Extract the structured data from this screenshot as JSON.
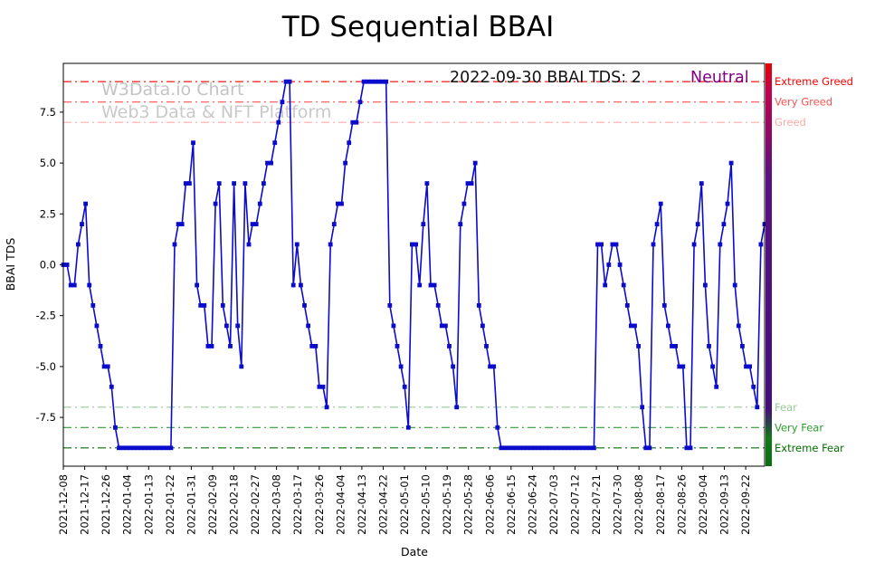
{
  "title": "TD Sequential BBAI",
  "watermark": {
    "line1": "W3Data.io Chart",
    "line2": "Web3 Data & NFT Platform"
  },
  "annotation": {
    "date_text": "2022-09-30 BBAI TDS: 2",
    "sentiment": "Neutral",
    "sentiment_color": "#800080"
  },
  "chart_data": {
    "type": "line",
    "title": "TD Sequential BBAI",
    "xlabel": "Date",
    "ylabel": "BBAI TDS",
    "ylim": [
      -9.9,
      9.9
    ],
    "x_start": "2021-12-08",
    "x_end": "2022-09-30",
    "x_range_days": 296,
    "x_tick_interval_days": 9,
    "grid": false,
    "legend_position": "none",
    "line_color": "#0b0bcc",
    "marker": "square",
    "x_tick_labels": [
      "2021-12-08",
      "2021-12-17",
      "2021-12-26",
      "2022-01-04",
      "2022-01-13",
      "2022-01-22",
      "2022-01-31",
      "2022-02-09",
      "2022-02-18",
      "2022-02-27",
      "2022-03-08",
      "2022-03-17",
      "2022-03-26",
      "2022-04-04",
      "2022-04-13",
      "2022-04-22",
      "2022-05-01",
      "2022-05-10",
      "2022-05-19",
      "2022-05-28",
      "2022-06-06",
      "2022-06-15",
      "2022-06-24",
      "2022-07-03",
      "2022-07-12",
      "2022-07-21",
      "2022-07-30",
      "2022-08-08",
      "2022-08-17",
      "2022-08-26",
      "2022-09-04",
      "2022-09-13",
      "2022-09-22"
    ],
    "y_tick_values": [
      7.5,
      5.0,
      2.5,
      0.0,
      -2.5,
      -5.0,
      -7.5
    ],
    "y_tick_labels": [
      "7.5",
      "5.0",
      "2.5",
      "0.0",
      "-2.5",
      "-5.0",
      "-7.5"
    ],
    "series": [
      {
        "name": "BBAI TDS",
        "values": [
          0,
          0,
          -1,
          -1,
          1,
          2,
          3,
          -1,
          -2,
          -3,
          -4,
          -5,
          -5,
          -6,
          -8,
          -9,
          -9,
          -9,
          -9,
          -9,
          -9,
          -9,
          -9,
          -9,
          -9,
          -9,
          -9,
          -9,
          -9,
          -9,
          1,
          2,
          2,
          4,
          4,
          6,
          -1,
          -2,
          -2,
          -4,
          -4,
          3,
          4,
          -2,
          -3,
          -4,
          4,
          -3,
          -5,
          4,
          1,
          2,
          2,
          3,
          4,
          5,
          5,
          6,
          7,
          8,
          9,
          9,
          -1,
          1,
          -1,
          -2,
          -3,
          -4,
          -4,
          -6,
          -6,
          -7,
          1,
          2,
          3,
          3,
          5,
          6,
          7,
          7,
          8,
          9,
          9,
          9,
          9,
          9,
          9,
          9,
          -2,
          -3,
          -4,
          -5,
          -6,
          -8,
          1,
          1,
          -1,
          2,
          4,
          -1,
          -1,
          -2,
          -3,
          -3,
          -4,
          -5,
          -7,
          2,
          3,
          4,
          4,
          5,
          -2,
          -3,
          -4,
          -5,
          -5,
          -8,
          -9,
          -9,
          -9,
          -9,
          -9,
          -9,
          -9,
          -9,
          -9,
          -9,
          -9,
          -9,
          -9,
          -9,
          -9,
          -9,
          -9,
          -9,
          -9,
          -9,
          -9,
          -9,
          -9,
          -9,
          -9,
          -9,
          1,
          1,
          -1,
          0,
          1,
          1,
          0,
          -1,
          -2,
          -3,
          -3,
          -4,
          -7,
          -9,
          -9,
          1,
          2,
          3,
          -2,
          -3,
          -4,
          -4,
          -5,
          -5,
          -9,
          -9,
          1,
          2,
          4,
          -1,
          -4,
          -5,
          -6,
          1,
          2,
          3,
          5,
          -1,
          -3,
          -4,
          -5,
          -5,
          -6,
          -7,
          1,
          2
        ]
      }
    ],
    "thresholds": [
      {
        "label": "Extreme Greed",
        "y": 9,
        "color": "#ff0000"
      },
      {
        "label": "Very Greed",
        "y": 8,
        "color": "#ff5252"
      },
      {
        "label": "Greed",
        "y": 7,
        "color": "#ffaaaa"
      },
      {
        "label": "Fear",
        "y": -7,
        "color": "#94ce94"
      },
      {
        "label": "Very Fear",
        "y": -8,
        "color": "#2e9e2e"
      },
      {
        "label": "Extreme Fear",
        "y": -9,
        "color": "#007000"
      }
    ],
    "colorbar": [
      {
        "offset": 0,
        "color": "#e60000"
      },
      {
        "offset": 7,
        "color": "#c2004e"
      },
      {
        "offset": 28,
        "color": "#5a1080"
      },
      {
        "offset": 86,
        "color": "#430f7a"
      },
      {
        "offset": 93,
        "color": "#117a18"
      },
      {
        "offset": 100,
        "color": "#0a6e10"
      }
    ]
  }
}
